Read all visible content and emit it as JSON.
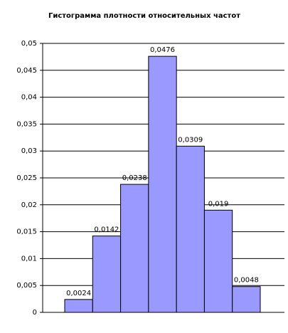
{
  "chart_data": {
    "type": "bar",
    "title": "Гистограмма плотности относительных частот",
    "categories": [
      null,
      null,
      null,
      null,
      null,
      null,
      null
    ],
    "values": [
      0.0024,
      0.0142,
      0.0238,
      0.0476,
      0.0309,
      0.019,
      0.0048
    ],
    "value_labels": [
      "0,0024",
      "0,0142",
      "0,0238",
      "0,0476",
      "0,0309",
      "0,019",
      "0,0048"
    ],
    "color": "#9999ff",
    "ylim": [
      0,
      0.05
    ],
    "yticks": [
      0,
      {
        "value": 0.005,
        "label": "0,005"
      },
      {
        "value": 0.01,
        "label": "0,01"
      },
      {
        "value": 0.015,
        "label": "0,015"
      },
      {
        "value": 0.02,
        "label": "0,02"
      },
      {
        "value": 0.025,
        "label": "0,025"
      },
      {
        "value": 0.03,
        "label": "0,03"
      },
      {
        "value": 0.035,
        "label": "0,035"
      },
      {
        "value": 0.04,
        "label": "0,04"
      },
      {
        "value": 0.045,
        "label": "0,045"
      },
      {
        "value": 0.05,
        "label": "0,05"
      }
    ],
    "grid": true
  }
}
